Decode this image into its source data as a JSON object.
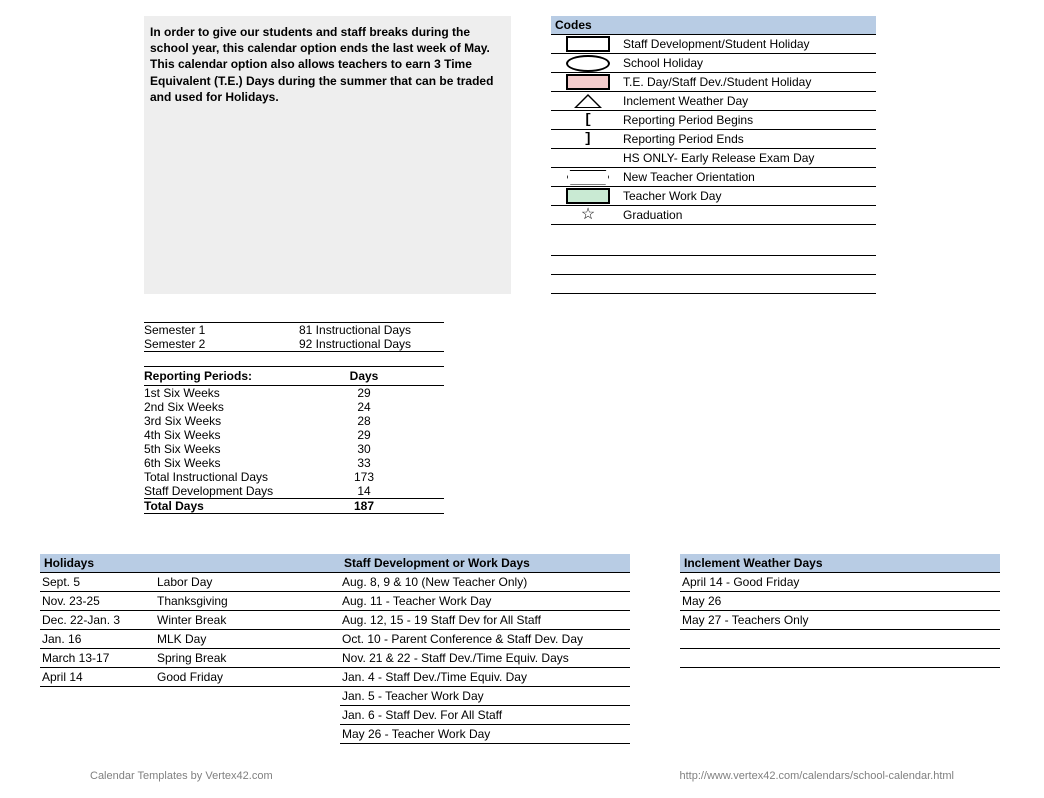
{
  "intro_text": "In order to give our students and staff breaks during the school year, this calendar option ends the last week of May. This calendar option also allows teachers to earn 3 Time Equivalent (T.E.) Days during the summer that can be traded and used for Holidays.",
  "codes": {
    "header": "Codes",
    "items": [
      {
        "icon": "blackbox",
        "label": "Staff Development/Student Holiday"
      },
      {
        "icon": "oval",
        "label": "School Holiday"
      },
      {
        "icon": "pinkbox",
        "label": "T.E. Day/Staff Dev./Student Holiday"
      },
      {
        "icon": "triangle",
        "label": "Inclement Weather Day"
      },
      {
        "icon": "bracket-open",
        "label": "Reporting Period Begins"
      },
      {
        "icon": "bracket-close",
        "label": "Reporting Period Ends"
      },
      {
        "icon": "none",
        "label": "HS ONLY- Early Release Exam Day"
      },
      {
        "icon": "hex",
        "label": "New Teacher Orientation"
      },
      {
        "icon": "greenbox",
        "label": "Teacher Work Day"
      },
      {
        "icon": "star",
        "label": "Graduation"
      }
    ]
  },
  "semesters": [
    {
      "name": "Semester 1",
      "days": "81 Instructional Days"
    },
    {
      "name": "Semester 2",
      "days": "92 Instructional Days"
    }
  ],
  "reporting": {
    "header_label": "Reporting Periods:",
    "header_days": "Days",
    "rows": [
      {
        "label": "1st Six Weeks",
        "days": "29"
      },
      {
        "label": "2nd Six Weeks",
        "days": "24"
      },
      {
        "label": "3rd Six Weeks",
        "days": "28"
      },
      {
        "label": "4th Six Weeks",
        "days": "29"
      },
      {
        "label": "5th Six Weeks",
        "days": "30"
      },
      {
        "label": "6th Six Weeks",
        "days": "33"
      },
      {
        "label": "Total Instructional Days",
        "days": "173"
      },
      {
        "label": "Staff Development Days",
        "days": "14"
      }
    ],
    "total_label": "Total Days",
    "total_value": "187"
  },
  "holidays": {
    "header": "Holidays",
    "rows": [
      {
        "date": "Sept. 5",
        "name": "Labor Day"
      },
      {
        "date": "Nov. 23-25",
        "name": "Thanksgiving"
      },
      {
        "date": "Dec. 22-Jan. 3",
        "name": "Winter Break"
      },
      {
        "date": "Jan. 16",
        "name": "MLK Day"
      },
      {
        "date": "March 13-17",
        "name": "Spring Break"
      },
      {
        "date": "April 14",
        "name": "Good Friday"
      }
    ]
  },
  "staffdev": {
    "header": "Staff Development or Work Days",
    "rows": [
      "Aug. 8, 9 & 10 (New Teacher Only)",
      "Aug. 11 - Teacher Work Day",
      "Aug. 12, 15 - 19 Staff Dev for All Staff",
      "Oct. 10 - Parent Conference & Staff Dev. Day",
      "Nov. 21 & 22 - Staff Dev./Time Equiv. Days",
      "Jan. 4 - Staff Dev./Time Equiv. Day",
      "Jan. 5 - Teacher Work Day",
      "Jan. 6 - Staff Dev. For All Staff",
      "May 26 - Teacher Work Day"
    ]
  },
  "inclement": {
    "header": "Inclement Weather Days",
    "rows": [
      "April 14 - Good Friday",
      "May 26",
      "May 27 - Teachers Only"
    ]
  },
  "footer_left": "Calendar Templates by Vertex42.com",
  "footer_right": "http://www.vertex42.com/calendars/school-calendar.html",
  "colors": {
    "header_bg": "#b8cce4",
    "intro_bg": "#eeeeee",
    "pink": "#f4cccc",
    "green": "#c9ead3",
    "footer": "#808080"
  }
}
